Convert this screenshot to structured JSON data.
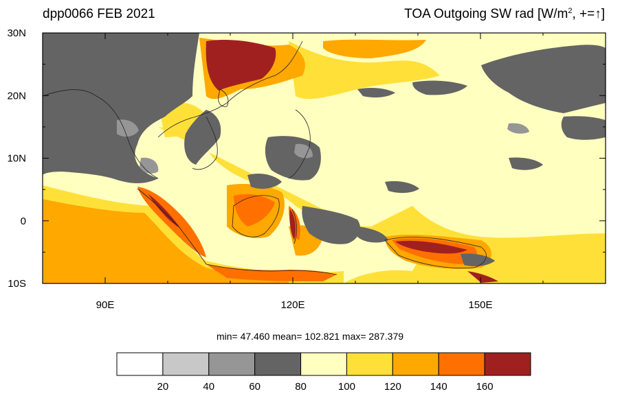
{
  "header": {
    "left_title": "dpp0066 FEB 2021",
    "right_title_prefix": "TOA Outgoing SW rad [W/m",
    "right_title_sup": "2",
    "right_title_suffix": ", +=",
    "right_title_arrow": "↑",
    "right_title_close": "]"
  },
  "map": {
    "lon_range": [
      80,
      170
    ],
    "lat_range": [
      -10,
      30
    ],
    "x_ticks": [
      {
        "value": 90,
        "label": "90E"
      },
      {
        "value": 120,
        "label": "120E"
      },
      {
        "value": 150,
        "label": "150E"
      }
    ],
    "y_ticks": [
      {
        "value": 30,
        "label": "30N"
      },
      {
        "value": 20,
        "label": "20N"
      },
      {
        "value": 10,
        "label": "10N"
      },
      {
        "value": 0,
        "label": "0"
      },
      {
        "value": -10,
        "label": "10S"
      }
    ],
    "minor_lon_ticks": [
      80,
      100,
      110,
      130,
      140,
      160,
      170
    ],
    "minor_lat_ticks": [
      25,
      15,
      5,
      -5
    ]
  },
  "stats": {
    "min_label": "min=",
    "min_value": "47.460",
    "mean_label": "mean=",
    "mean_value": "102.821",
    "max_label": "max=",
    "max_value": "287.379"
  },
  "colorbar": {
    "colors": [
      "#ffffff",
      "#c8c8c8",
      "#969696",
      "#646464",
      "#ffffc0",
      "#ffe038",
      "#ffa800",
      "#ff7000",
      "#a02020"
    ],
    "labels": [
      "20",
      "40",
      "60",
      "80",
      "100",
      "120",
      "140",
      "160"
    ]
  },
  "palette": {
    "background_field": "#ffffc0",
    "cloud": "#646464",
    "cloud_light": "#969696",
    "bright": "#ffe038",
    "orange": "#ffa800",
    "dark_orange": "#ff7000",
    "deep_red": "#a02020"
  },
  "chart_data": {
    "type": "heatmap",
    "variable": "TOA Outgoing SW rad",
    "units": "W/m2",
    "xlim": [
      80,
      170
    ],
    "ylim": [
      -10,
      30
    ],
    "levels": [
      20,
      40,
      60,
      80,
      100,
      120,
      140,
      160
    ],
    "min": 47.46,
    "mean": 102.821,
    "max": 287.379
  }
}
